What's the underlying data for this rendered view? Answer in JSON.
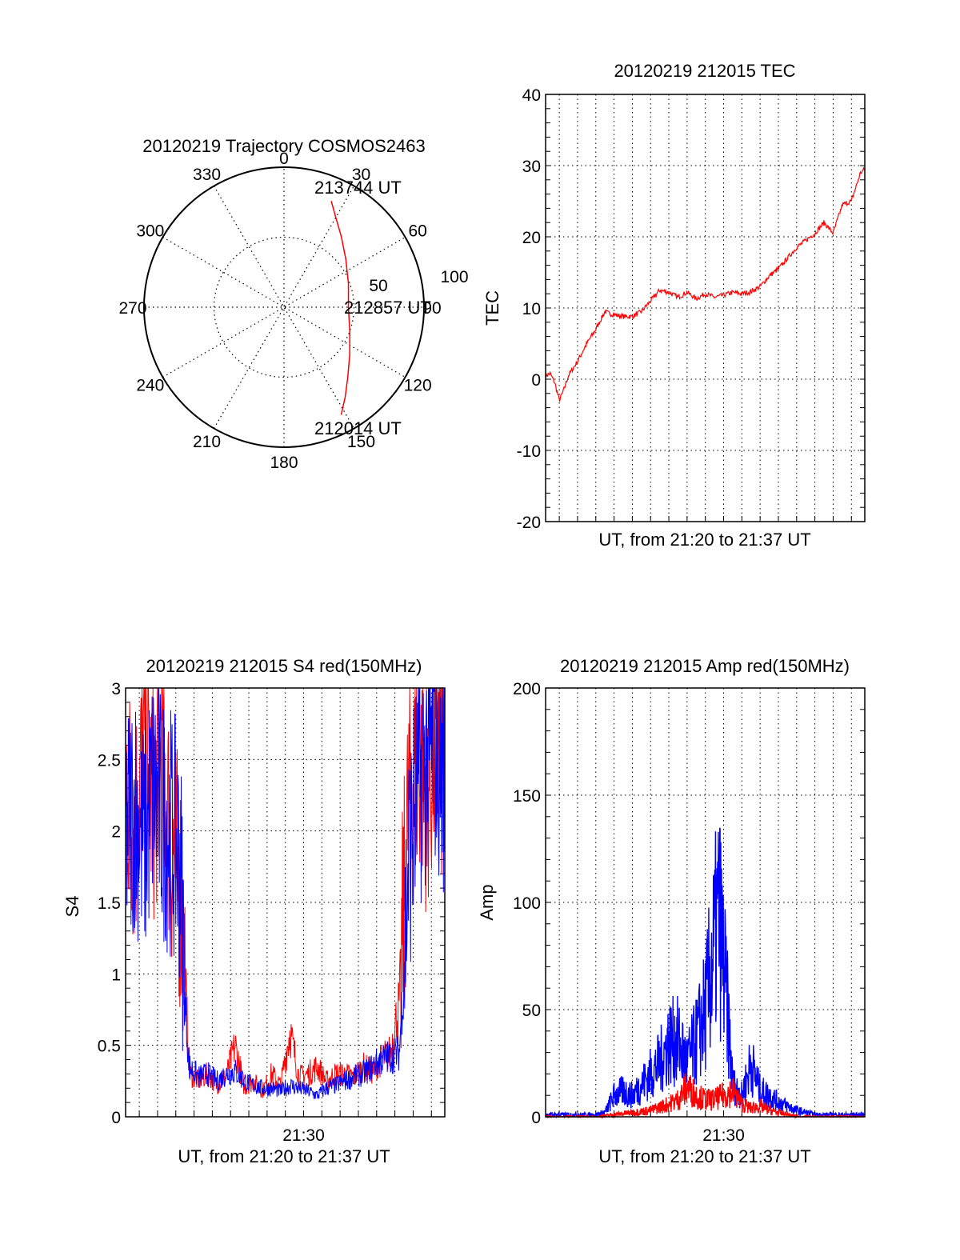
{
  "chart_data": [
    {
      "type": "polar",
      "title": "20120219 Trajectory COSMOS2463",
      "angle_ticks": [
        "0",
        "30",
        "60",
        "90",
        "120",
        "150",
        "180",
        "210",
        "240",
        "270",
        "300",
        "330"
      ],
      "radial_ticks": [
        "50",
        "100"
      ],
      "radial_range": [
        0,
        100
      ],
      "grid": true,
      "series": [
        {
          "color": "#ff0000",
          "points": [
            {
              "az": 24,
              "r": 83
            },
            {
              "az": 30,
              "r": 74
            },
            {
              "az": 39,
              "r": 65
            },
            {
              "az": 52,
              "r": 56
            },
            {
              "az": 70,
              "r": 49
            },
            {
              "az": 90,
              "r": 46
            },
            {
              "az": 110,
              "r": 50
            },
            {
              "az": 126,
              "r": 58
            },
            {
              "az": 138,
              "r": 68
            },
            {
              "az": 146,
              "r": 78
            },
            {
              "az": 152,
              "r": 87
            }
          ]
        }
      ],
      "annotations": [
        {
          "text": "213744 UT",
          "az": 24,
          "r": 83
        },
        {
          "text": "212857 UT",
          "az": 90,
          "r": 46
        },
        {
          "text": "212014 UT",
          "az": 152,
          "r": 87
        }
      ]
    },
    {
      "type": "line",
      "title": "20120219 212015 TEC",
      "xlabel": "UT, from 21:20 to 21:37 UT",
      "ylabel": "TEC",
      "xlim": [
        "21:20:15",
        "21:37:44"
      ],
      "ylim": [
        -20,
        40
      ],
      "yticks": [
        "-20",
        "-10",
        "0",
        "10",
        "20",
        "30",
        "40"
      ],
      "xticks": [],
      "grid": true,
      "series": [
        {
          "color": "#ff0000",
          "x": [
            "21:20:15",
            "21:20:30",
            "21:20:45",
            "21:21:00",
            "21:21:15",
            "21:21:30",
            "21:22:00",
            "21:22:30",
            "21:23:00",
            "21:23:30",
            "21:23:45",
            "21:24:30",
            "21:25:00",
            "21:25:30",
            "21:26:00",
            "21:26:30",
            "21:27:00",
            "21:27:30",
            "21:28:00",
            "21:28:30",
            "21:29:00",
            "21:29:30",
            "21:30:00",
            "21:30:30",
            "21:31:00",
            "21:31:30",
            "21:32:00",
            "21:32:30",
            "21:33:00",
            "21:33:30",
            "21:34:00",
            "21:34:30",
            "21:35:00",
            "21:35:30",
            "21:36:00",
            "21:36:30",
            "21:37:00",
            "21:37:30",
            "21:37:44"
          ],
          "values": [
            0.5,
            0.8,
            -0.5,
            -3,
            -1.5,
            0.5,
            2.5,
            5,
            7,
            9.5,
            9.2,
            8.8,
            8.8,
            9.5,
            11,
            12.5,
            12.2,
            11.5,
            12.2,
            11.3,
            12,
            11.5,
            11.8,
            12.2,
            12,
            12.3,
            13,
            14.5,
            15.5,
            17,
            18.5,
            19.5,
            20.5,
            22,
            20.5,
            24.5,
            25,
            29,
            29.5
          ]
        }
      ]
    },
    {
      "type": "line",
      "title": "20120219 212015 S4 red(150MHz)",
      "xlabel": "UT, from 21:20 to 21:37 UT",
      "ylabel": "S4",
      "xlim": [
        "21:20:15",
        "21:37:44"
      ],
      "ylim": [
        0,
        3
      ],
      "yticks": [
        "0",
        "0.5",
        "1",
        "1.5",
        "2",
        "2.5",
        "3"
      ],
      "xticks": [
        "21:30"
      ],
      "grid": true,
      "series": [
        {
          "color": "#ff0000",
          "x": [
            "21:20:15",
            "21:20:45",
            "21:21:15",
            "21:21:45",
            "21:22:15",
            "21:22:45",
            "21:23:15",
            "21:23:30",
            "21:23:45",
            "21:24:15",
            "21:24:45",
            "21:25:15",
            "21:25:45",
            "21:26:15",
            "21:26:45",
            "21:27:15",
            "21:27:45",
            "21:28:15",
            "21:28:45",
            "21:29:15",
            "21:29:45",
            "21:30:15",
            "21:30:45",
            "21:31:15",
            "21:31:45",
            "21:32:15",
            "21:32:45",
            "21:33:15",
            "21:33:45",
            "21:34:15",
            "21:34:45",
            "21:35:15",
            "21:35:45",
            "21:36:15",
            "21:36:45",
            "21:37:15",
            "21:37:44"
          ],
          "values": [
            2.4,
            2.0,
            2.6,
            2.2,
            2.5,
            1.9,
            1.6,
            1.0,
            0.3,
            0.25,
            0.3,
            0.22,
            0.28,
            0.5,
            0.2,
            0.25,
            0.18,
            0.3,
            0.22,
            0.6,
            0.28,
            0.3,
            0.35,
            0.25,
            0.3,
            0.3,
            0.28,
            0.35,
            0.32,
            0.4,
            0.45,
            0.8,
            2.2,
            2.5,
            2.3,
            2.6,
            2.4
          ]
        },
        {
          "color": "#0000ff",
          "x": [
            "21:20:15",
            "21:20:45",
            "21:21:15",
            "21:21:45",
            "21:22:15",
            "21:22:45",
            "21:23:15",
            "21:23:30",
            "21:23:45",
            "21:24:15",
            "21:24:45",
            "21:25:15",
            "21:25:45",
            "21:26:15",
            "21:26:45",
            "21:27:15",
            "21:27:45",
            "21:28:15",
            "21:28:45",
            "21:29:15",
            "21:29:45",
            "21:30:15",
            "21:30:45",
            "21:31:15",
            "21:31:45",
            "21:32:15",
            "21:32:45",
            "21:33:15",
            "21:33:45",
            "21:34:15",
            "21:34:45",
            "21:35:15",
            "21:35:45",
            "21:36:15",
            "21:36:45",
            "21:37:15",
            "21:37:44"
          ],
          "values": [
            2.0,
            2.2,
            1.9,
            2.3,
            2.1,
            2.0,
            1.8,
            0.8,
            0.35,
            0.28,
            0.3,
            0.25,
            0.3,
            0.32,
            0.25,
            0.22,
            0.2,
            0.2,
            0.18,
            0.22,
            0.2,
            0.18,
            0.15,
            0.2,
            0.22,
            0.25,
            0.28,
            0.3,
            0.35,
            0.4,
            0.42,
            0.45,
            1.8,
            2.3,
            2.5,
            2.6,
            2.4
          ]
        }
      ]
    },
    {
      "type": "line",
      "title": "20120219 212015 Amp red(150MHz)",
      "xlabel": "UT, from 21:20 to 21:37 UT",
      "ylabel": "Amp",
      "xlim": [
        "21:20:15",
        "21:37:44"
      ],
      "ylim": [
        0,
        200
      ],
      "yticks": [
        "0",
        "50",
        "100",
        "150",
        "200"
      ],
      "xticks": [
        "21:30"
      ],
      "grid": true,
      "series": [
        {
          "color": "#0000ff",
          "x": [
            "21:20:15",
            "21:21:00",
            "21:22:00",
            "21:23:00",
            "21:23:30",
            "21:24:00",
            "21:24:30",
            "21:25:00",
            "21:25:30",
            "21:26:00",
            "21:26:30",
            "21:27:00",
            "21:27:30",
            "21:28:00",
            "21:28:30",
            "21:29:00",
            "21:29:30",
            "21:29:45",
            "21:30:00",
            "21:30:15",
            "21:30:30",
            "21:31:00",
            "21:31:30",
            "21:32:00",
            "21:32:30",
            "21:33:00",
            "21:33:30",
            "21:34:00",
            "21:35:00",
            "21:36:00",
            "21:37:44"
          ],
          "values": [
            1,
            1,
            1,
            1,
            2,
            10,
            12,
            10,
            15,
            20,
            25,
            35,
            35,
            25,
            35,
            50,
            80,
            95,
            70,
            45,
            15,
            10,
            25,
            12,
            10,
            7,
            5,
            3,
            1,
            1,
            1
          ]
        },
        {
          "color": "#ff0000",
          "x": [
            "21:20:15",
            "21:22:00",
            "21:23:00",
            "21:24:00",
            "21:25:00",
            "21:26:00",
            "21:27:00",
            "21:27:30",
            "21:28:00",
            "21:28:30",
            "21:29:00",
            "21:29:30",
            "21:30:00",
            "21:30:30",
            "21:31:00",
            "21:31:30",
            "21:32:00",
            "21:32:30",
            "21:33:00",
            "21:34:00",
            "21:37:44"
          ],
          "values": [
            0,
            0,
            0,
            1,
            2,
            3,
            6,
            8,
            14,
            10,
            8,
            8,
            10,
            12,
            6,
            4,
            5,
            3,
            2,
            0,
            0
          ]
        }
      ]
    }
  ]
}
